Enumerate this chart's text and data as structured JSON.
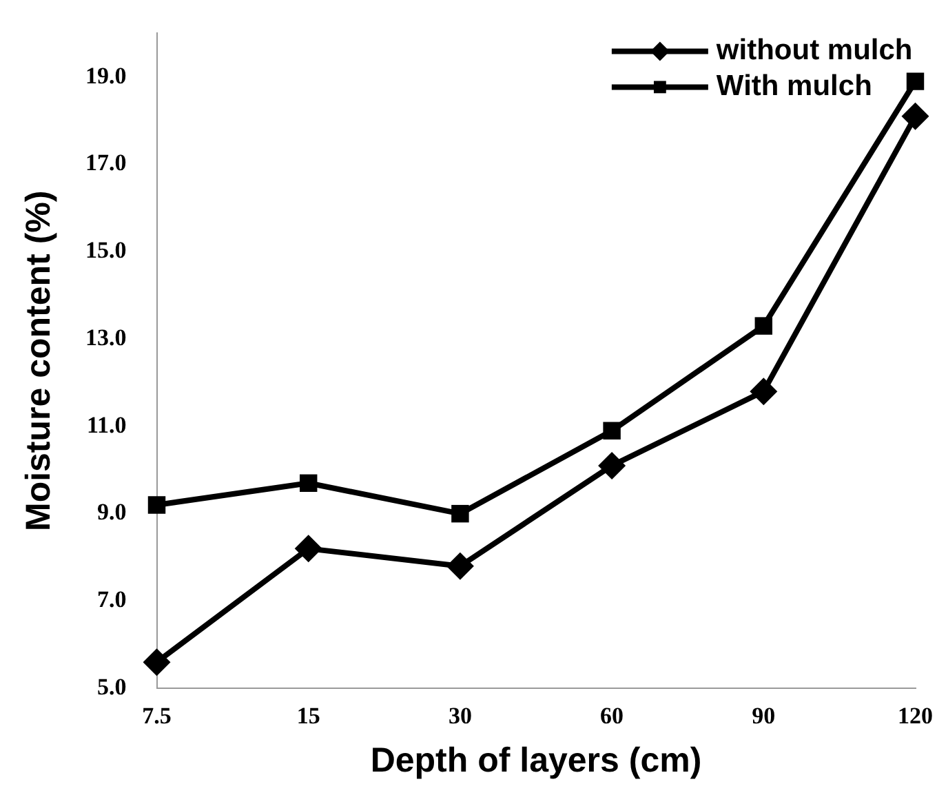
{
  "chart_data": {
    "type": "line",
    "xlabel": "Depth of layers (cm)",
    "ylabel": "Moisture content (%)",
    "categories": [
      "7.5",
      "15",
      "30",
      "60",
      "90",
      "120"
    ],
    "series": [
      {
        "name": "without mulch",
        "color": "#000000",
        "marker": "diamond",
        "values": [
          5.6,
          8.2,
          7.8,
          10.1,
          11.8,
          18.1
        ]
      },
      {
        "name": "With mulch",
        "color": "#000000",
        "marker": "square",
        "values": [
          9.2,
          9.7,
          9.0,
          10.9,
          13.3,
          18.9
        ]
      }
    ],
    "ylim": [
      5,
      20
    ],
    "yticks": [
      {
        "value": 5,
        "label": "5.0"
      },
      {
        "value": 7,
        "label": "7.0"
      },
      {
        "value": 9,
        "label": "9.0"
      },
      {
        "value": 11,
        "label": "11.0"
      },
      {
        "value": 13,
        "label": "13.0"
      },
      {
        "value": 15,
        "label": "15.0"
      },
      {
        "value": 17,
        "label": "17.0"
      },
      {
        "value": 19,
        "label": "19.0"
      }
    ],
    "grid": false,
    "legend": "top right",
    "line_style": "solid"
  }
}
